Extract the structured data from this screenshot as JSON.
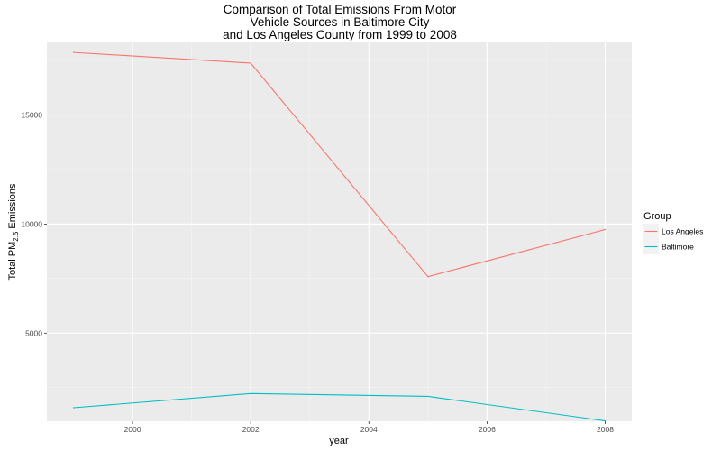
{
  "chart_data": {
    "type": "line",
    "title_lines": [
      "Comparison of Total Emissions From Motor",
      "Vehicle Sources in Baltimore City",
      "and Los Angeles County from 1999 to 2008"
    ],
    "xlabel": "year",
    "ylabel": {
      "prefix": "Total PM",
      "subscript": "2.5",
      "suffix": " Emissions"
    },
    "x": [
      1999,
      2002,
      2005,
      2008
    ],
    "xlim": [
      1998.55,
      2008.45
    ],
    "ylim": [
      960,
      18330
    ],
    "x_ticks": [
      2000,
      2002,
      2004,
      2006,
      2008
    ],
    "y_ticks": [
      5000,
      10000,
      15000
    ],
    "grid": true,
    "legend": {
      "title": "Group",
      "position": "right"
    },
    "series": [
      {
        "name": "Los Angeles",
        "color": "#F8766D",
        "values": [
          17870,
          17380,
          7590,
          9750
        ]
      },
      {
        "name": "Baltimore",
        "color": "#00BFC4",
        "values": [
          1580,
          2230,
          2100,
          980
        ]
      }
    ]
  },
  "colors": {
    "panel_background": "#EBEBEB",
    "grid_major": "#FFFFFF",
    "tick_text": "#4D4D4D",
    "legend_key_background": "#F2F2F2"
  }
}
